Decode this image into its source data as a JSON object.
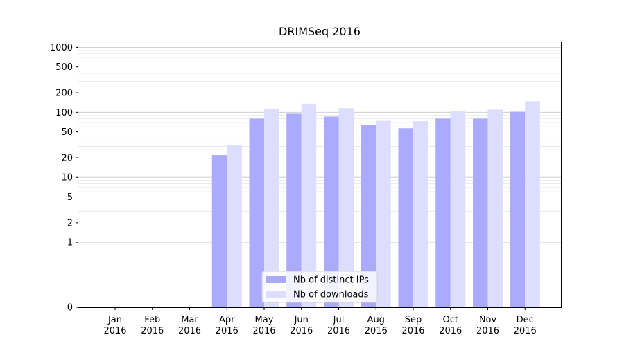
{
  "chart_data": {
    "type": "bar",
    "title": "DRIMSeq 2016",
    "xlabel": "",
    "ylabel": "",
    "y_scale": "symlog",
    "ylim": [
      0,
      1200
    ],
    "y_ticks": [
      0,
      1,
      2,
      5,
      10,
      20,
      50,
      100,
      200,
      500,
      1000
    ],
    "grid": true,
    "legend_position": "lower-center",
    "categories": [
      {
        "month": "Jan",
        "year": "2016"
      },
      {
        "month": "Feb",
        "year": "2016"
      },
      {
        "month": "Mar",
        "year": "2016"
      },
      {
        "month": "Apr",
        "year": "2016"
      },
      {
        "month": "May",
        "year": "2016"
      },
      {
        "month": "Jun",
        "year": "2016"
      },
      {
        "month": "Jul",
        "year": "2016"
      },
      {
        "month": "Aug",
        "year": "2016"
      },
      {
        "month": "Sep",
        "year": "2016"
      },
      {
        "month": "Oct",
        "year": "2016"
      },
      {
        "month": "Nov",
        "year": "2016"
      },
      {
        "month": "Dec",
        "year": "2016"
      }
    ],
    "series": [
      {
        "name": "Nb of distinct IPs",
        "color": "#aaaaff",
        "values": [
          0,
          0,
          0,
          22,
          80,
          95,
          86,
          64,
          57,
          80,
          80,
          102
        ]
      },
      {
        "name": "Nb of downloads",
        "color": "#ddddff",
        "values": [
          0,
          0,
          0,
          31,
          114,
          136,
          116,
          74,
          73,
          106,
          110,
          148
        ]
      }
    ]
  }
}
